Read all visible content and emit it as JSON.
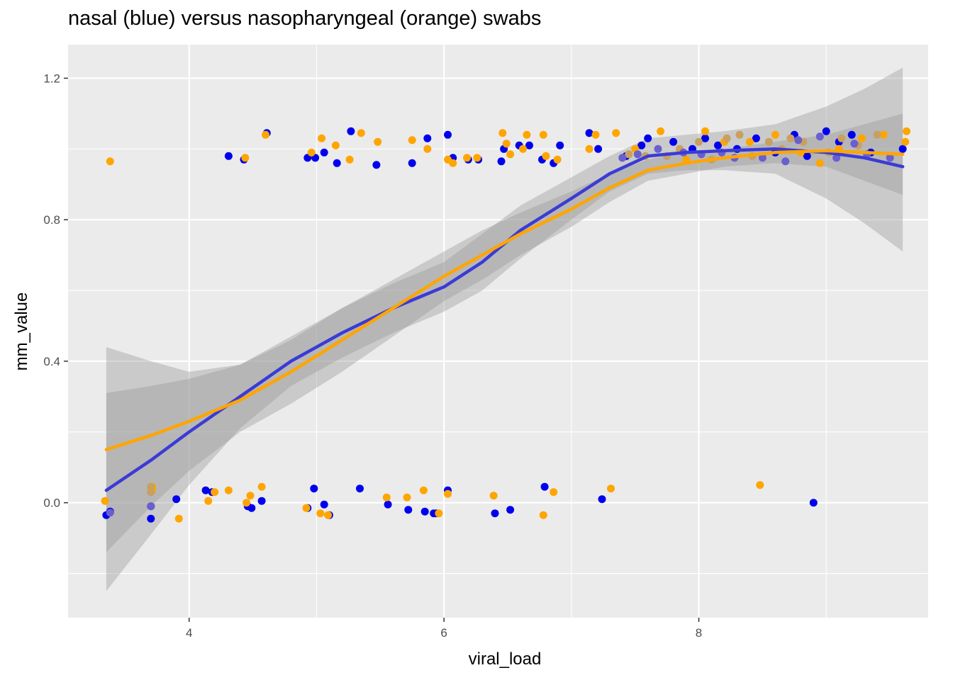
{
  "chart_data": {
    "type": "scatter",
    "title": "nasal (blue) versus nasopharyngeal (orange) swabs",
    "xlabel": "viral_load",
    "ylabel": "mm_value",
    "xlim": [
      3.05,
      9.8
    ],
    "ylim": [
      -0.325,
      1.295
    ],
    "x_ticks": [
      4,
      6,
      8
    ],
    "x_tick_labels": [
      "4",
      "6",
      "8"
    ],
    "y_ticks": [
      0.0,
      0.4,
      0.8,
      1.2
    ],
    "y_tick_labels": [
      "0.0",
      "0.4",
      "0.8",
      "1.2"
    ],
    "grid": true,
    "legend": "none",
    "series": [
      {
        "color": "#0000ee",
        "points": [
          [
            3.35,
            -0.035
          ],
          [
            3.38,
            -0.025
          ],
          [
            3.7,
            -0.01
          ],
          [
            3.7,
            -0.045
          ],
          [
            3.9,
            0.01
          ],
          [
            4.13,
            0.035
          ],
          [
            4.18,
            0.03
          ],
          [
            4.46,
            -0.01
          ],
          [
            4.49,
            -0.015
          ],
          [
            4.57,
            0.005
          ],
          [
            4.93,
            -0.015
          ],
          [
            4.98,
            0.04
          ],
          [
            5.06,
            -0.005
          ],
          [
            5.1,
            -0.035
          ],
          [
            5.34,
            0.04
          ],
          [
            5.56,
            -0.005
          ],
          [
            5.72,
            -0.02
          ],
          [
            5.85,
            -0.025
          ],
          [
            5.92,
            -0.03
          ],
          [
            5.94,
            -0.03
          ],
          [
            6.03,
            0.035
          ],
          [
            6.4,
            -0.03
          ],
          [
            6.52,
            -0.02
          ],
          [
            6.79,
            0.045
          ],
          [
            7.24,
            0.01
          ],
          [
            8.9,
            0.0
          ],
          [
            4.31,
            0.98
          ],
          [
            4.43,
            0.97
          ],
          [
            4.61,
            1.045
          ],
          [
            4.93,
            0.975
          ],
          [
            4.99,
            0.975
          ],
          [
            5.06,
            0.99
          ],
          [
            5.16,
            0.96
          ],
          [
            5.27,
            1.05
          ],
          [
            5.47,
            0.955
          ],
          [
            5.75,
            0.96
          ],
          [
            5.87,
            1.03
          ],
          [
            6.03,
            1.04
          ],
          [
            6.07,
            0.975
          ],
          [
            6.19,
            0.97
          ],
          [
            6.27,
            0.97
          ],
          [
            6.45,
            0.965
          ],
          [
            6.47,
            1.0
          ],
          [
            6.59,
            1.01
          ],
          [
            6.67,
            1.01
          ],
          [
            6.77,
            0.97
          ],
          [
            6.86,
            0.96
          ],
          [
            6.91,
            1.01
          ],
          [
            7.14,
            1.045
          ],
          [
            7.21,
            1.0
          ],
          [
            7.43,
            0.98
          ],
          [
            7.55,
            1.01
          ],
          [
            7.6,
            1.03
          ],
          [
            7.8,
            1.02
          ],
          [
            7.95,
            1.0
          ],
          [
            8.05,
            1.03
          ],
          [
            8.15,
            1.01
          ],
          [
            8.3,
            1.0
          ],
          [
            8.45,
            1.03
          ],
          [
            8.6,
            0.99
          ],
          [
            8.75,
            1.04
          ],
          [
            8.85,
            0.98
          ],
          [
            9.0,
            1.05
          ],
          [
            9.1,
            1.02
          ],
          [
            9.2,
            1.04
          ],
          [
            9.35,
            0.99
          ],
          [
            9.6,
            1.0
          ]
        ]
      },
      {
        "color": "#ffa500",
        "points": [
          [
            3.34,
            0.005
          ],
          [
            3.38,
            0.965
          ],
          [
            3.71,
            0.035
          ],
          [
            3.71,
            0.045
          ],
          [
            3.92,
            -0.045
          ],
          [
            4.15,
            0.005
          ],
          [
            4.2,
            0.03
          ],
          [
            4.31,
            0.035
          ],
          [
            4.45,
            0.0
          ],
          [
            4.48,
            0.02
          ],
          [
            4.57,
            0.045
          ],
          [
            4.92,
            -0.015
          ],
          [
            5.03,
            -0.03
          ],
          [
            5.09,
            -0.035
          ],
          [
            5.55,
            0.015
          ],
          [
            5.71,
            0.015
          ],
          [
            5.84,
            0.035
          ],
          [
            5.96,
            -0.03
          ],
          [
            6.03,
            0.025
          ],
          [
            6.39,
            0.02
          ],
          [
            6.78,
            -0.035
          ],
          [
            6.86,
            0.03
          ],
          [
            7.31,
            0.04
          ],
          [
            8.48,
            0.05
          ],
          [
            4.44,
            0.975
          ],
          [
            4.6,
            1.04
          ],
          [
            4.96,
            0.99
          ],
          [
            5.04,
            1.03
          ],
          [
            5.15,
            1.01
          ],
          [
            5.26,
            0.97
          ],
          [
            5.35,
            1.045
          ],
          [
            5.48,
            1.02
          ],
          [
            5.75,
            1.025
          ],
          [
            5.87,
            1.0
          ],
          [
            6.03,
            0.97
          ],
          [
            6.07,
            0.96
          ],
          [
            6.18,
            0.975
          ],
          [
            6.26,
            0.975
          ],
          [
            6.46,
            1.045
          ],
          [
            6.49,
            1.015
          ],
          [
            6.52,
            0.985
          ],
          [
            6.62,
            1.0
          ],
          [
            6.65,
            1.04
          ],
          [
            6.78,
            1.04
          ],
          [
            6.8,
            0.98
          ],
          [
            6.89,
            0.97
          ],
          [
            7.14,
            1.0
          ],
          [
            7.19,
            1.04
          ],
          [
            7.35,
            1.045
          ],
          [
            7.5,
            1.0
          ],
          [
            7.7,
            1.05
          ],
          [
            7.9,
            0.97
          ],
          [
            8.05,
            1.05
          ],
          [
            8.2,
            1.02
          ],
          [
            8.4,
            1.02
          ],
          [
            8.6,
            1.04
          ],
          [
            8.8,
            0.99
          ],
          [
            8.95,
            0.96
          ],
          [
            9.1,
            1.0
          ],
          [
            9.28,
            1.03
          ],
          [
            9.45,
            1.04
          ],
          [
            9.62,
            1.02
          ],
          [
            9.63,
            1.05
          ]
        ]
      },
      {
        "color": "#c8a060",
        "points": [
          [
            3.7,
            0.03
          ],
          [
            3.7,
            0.045
          ],
          [
            7.45,
            0.985
          ],
          [
            7.58,
            0.98
          ],
          [
            7.75,
            0.98
          ],
          [
            7.85,
            1.0
          ],
          [
            8.0,
            1.02
          ],
          [
            8.1,
            0.97
          ],
          [
            8.22,
            1.03
          ],
          [
            8.32,
            1.04
          ],
          [
            8.42,
            0.98
          ],
          [
            8.55,
            1.02
          ],
          [
            8.65,
            1.0
          ],
          [
            8.72,
            1.03
          ],
          [
            8.82,
            1.02
          ],
          [
            9.02,
            0.99
          ],
          [
            9.12,
            1.03
          ],
          [
            9.25,
            1.01
          ],
          [
            9.4,
            1.04
          ]
        ]
      },
      {
        "color": "#6a5fcf",
        "points": [
          [
            3.38,
            -0.028
          ],
          [
            3.7,
            -0.01
          ],
          [
            7.4,
            0.975
          ],
          [
            7.52,
            0.985
          ],
          [
            7.68,
            1.0
          ],
          [
            7.88,
            0.99
          ],
          [
            8.02,
            0.985
          ],
          [
            8.18,
            0.99
          ],
          [
            8.28,
            0.975
          ],
          [
            8.5,
            0.975
          ],
          [
            8.68,
            0.965
          ],
          [
            8.78,
            1.025
          ],
          [
            8.95,
            1.035
          ],
          [
            9.08,
            0.975
          ],
          [
            9.22,
            1.015
          ],
          [
            9.32,
            0.985
          ],
          [
            9.5,
            0.975
          ]
        ]
      }
    ],
    "smooth": [
      {
        "color": "#3b3bd6",
        "x": [
          3.35,
          3.7,
          4.0,
          4.4,
          4.8,
          5.2,
          5.6,
          6.0,
          6.3,
          6.6,
          7.0,
          7.3,
          7.6,
          7.9,
          8.2,
          8.6,
          9.0,
          9.3,
          9.6
        ],
        "y": [
          0.035,
          0.12,
          0.2,
          0.3,
          0.4,
          0.48,
          0.55,
          0.61,
          0.68,
          0.77,
          0.86,
          0.93,
          0.98,
          0.99,
          0.995,
          1.0,
          0.99,
          0.975,
          0.95
        ],
        "ci_upper": [
          0.31,
          0.33,
          0.35,
          0.39,
          0.47,
          0.55,
          0.62,
          0.68,
          0.76,
          0.84,
          0.92,
          0.98,
          1.03,
          1.04,
          1.05,
          1.07,
          1.12,
          1.17,
          1.23
        ],
        "ci_lower": [
          -0.25,
          -0.09,
          0.05,
          0.21,
          0.33,
          0.41,
          0.48,
          0.54,
          0.6,
          0.69,
          0.8,
          0.88,
          0.93,
          0.94,
          0.94,
          0.93,
          0.86,
          0.79,
          0.71
        ]
      },
      {
        "color": "#ffa500",
        "x": [
          3.35,
          3.7,
          4.0,
          4.4,
          4.8,
          5.2,
          5.6,
          6.0,
          6.3,
          6.6,
          7.0,
          7.3,
          7.6,
          7.9,
          8.2,
          8.6,
          9.0,
          9.3,
          9.6
        ],
        "y": [
          0.15,
          0.19,
          0.23,
          0.29,
          0.37,
          0.46,
          0.55,
          0.64,
          0.7,
          0.76,
          0.83,
          0.89,
          0.94,
          0.96,
          0.975,
          0.99,
          0.995,
          0.99,
          0.985
        ],
        "ci_upper": [
          0.44,
          0.4,
          0.37,
          0.39,
          0.46,
          0.55,
          0.63,
          0.71,
          0.77,
          0.82,
          0.88,
          0.93,
          0.97,
          0.99,
          1.0,
          1.02,
          1.04,
          1.07,
          1.1
        ],
        "ci_lower": [
          -0.14,
          -0.01,
          0.09,
          0.2,
          0.28,
          0.37,
          0.47,
          0.57,
          0.63,
          0.7,
          0.78,
          0.85,
          0.91,
          0.93,
          0.95,
          0.96,
          0.95,
          0.91,
          0.87
        ]
      }
    ]
  }
}
